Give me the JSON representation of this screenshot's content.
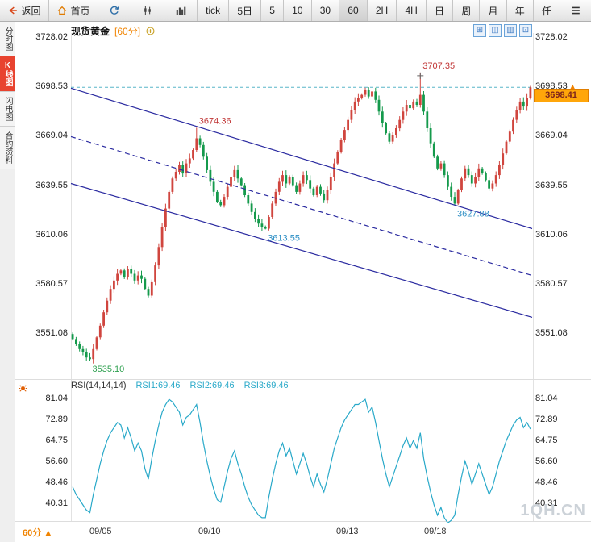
{
  "colors": {
    "up": "#d0453e",
    "down": "#159a4c",
    "trend": "#2a2aa0",
    "rsi_line": "#29a9c9",
    "accent": "#f08300"
  },
  "toolbar": {
    "back_label": "返回",
    "home_label": "首页",
    "buttons": [
      "tick",
      "5日",
      "5",
      "10",
      "30",
      "60",
      "2H",
      "4H",
      "日",
      "周",
      "月",
      "年",
      "任"
    ],
    "active": "60"
  },
  "sidebar": {
    "tabs": [
      {
        "label": "分时图",
        "active": false
      },
      {
        "label": "K线图",
        "active": true
      },
      {
        "label": "闪电图",
        "active": false
      },
      {
        "label": "合约资料",
        "active": false
      }
    ]
  },
  "chart": {
    "title": "现货黄金",
    "period_tag": "[60分]",
    "price_axis": [
      "3728.02",
      "3698.53",
      "3669.04",
      "3639.55",
      "3610.06",
      "3580.57",
      "3551.08"
    ],
    "axis_arrow_index": 1,
    "axis_arrow": "▲",
    "current_price": "3698.41",
    "top_tools": [
      {
        "name": "crosshair-tool-icon",
        "glyph": "⊞"
      },
      {
        "name": "measure-tool-icon",
        "glyph": "◫"
      },
      {
        "name": "draw-tool-icon",
        "glyph": "▥"
      },
      {
        "name": "zoom-tool-icon",
        "glyph": "⊡"
      }
    ]
  },
  "chart_data": {
    "type": "candlestick",
    "symbol": "现货黄金",
    "interval": "60分",
    "price_range": [
      3728.02,
      3551.08
    ],
    "closes": [
      3548,
      3545,
      3542,
      3540,
      3537,
      3536,
      3542,
      3549,
      3556,
      3564,
      3571,
      3578,
      3583,
      3587,
      3589,
      3585,
      3590,
      3587,
      3583,
      3586,
      3584,
      3578,
      3574,
      3582,
      3592,
      3603,
      3615,
      3626,
      3636,
      3644,
      3648,
      3652,
      3647,
      3653,
      3656,
      3661,
      3668,
      3664,
      3657,
      3649,
      3642,
      3636,
      3630,
      3628,
      3633,
      3639,
      3645,
      3649,
      3644,
      3640,
      3634,
      3629,
      3624,
      3620,
      3617,
      3615,
      3614,
      3621,
      3629,
      3636,
      3642,
      3646,
      3641,
      3645,
      3640,
      3636,
      3641,
      3646,
      3643,
      3638,
      3634,
      3639,
      3635,
      3631,
      3637,
      3645,
      3653,
      3660,
      3667,
      3673,
      3679,
      3685,
      3690,
      3692,
      3694,
      3697,
      3693,
      3696,
      3691,
      3684,
      3677,
      3671,
      3666,
      3670,
      3674,
      3679,
      3684,
      3688,
      3686,
      3690,
      3688,
      3694,
      3684,
      3674,
      3665,
      3657,
      3650,
      3653,
      3646,
      3639,
      3633,
      3629,
      3637,
      3644,
      3650,
      3646,
      3641,
      3645,
      3650,
      3647,
      3643,
      3638,
      3641,
      3646,
      3652,
      3659,
      3666,
      3672,
      3679,
      3685,
      3690,
      3687,
      3692,
      3698.41
    ],
    "markers": [
      {
        "index": 5,
        "type": "low",
        "price": 3535.1
      },
      {
        "index": 36,
        "type": "high",
        "price": 3674.36
      },
      {
        "index": 56,
        "type": "low",
        "price": 3613.55
      },
      {
        "index": 101,
        "type": "high",
        "price": 3707.35
      },
      {
        "index": 111,
        "type": "low",
        "price": 3627.88
      }
    ],
    "annotations": [
      {
        "index": 5,
        "price": 3535.1,
        "label": "3535.10",
        "color": "#2fa050",
        "pos": "below"
      },
      {
        "index": 36,
        "price": 3674.36,
        "label": "3674.36",
        "color": "#c03434",
        "pos": "above"
      },
      {
        "index": 56,
        "price": 3613.55,
        "label": "3613.55",
        "color": "#2d8fc5",
        "pos": "below"
      },
      {
        "index": 101,
        "price": 3707.35,
        "label": "3707.35",
        "color": "#c03434",
        "pos": "above",
        "cross": true
      },
      {
        "index": 111,
        "price": 3627.88,
        "label": "3627.88",
        "color": "#2d8fc5",
        "pos": "below"
      }
    ],
    "trendlines": [
      {
        "from": 3698,
        "to": 3614,
        "style": "solid"
      },
      {
        "from": 3669,
        "to": 3586,
        "style": "dashed"
      },
      {
        "from": 3641,
        "to": 3561,
        "style": "solid"
      }
    ],
    "hline": {
      "price": 3698.53,
      "style": "dashed",
      "color": "#58b6c8"
    },
    "rsi": {
      "range": [
        81.04,
        40.31
      ],
      "axis": [
        "81.04",
        "72.89",
        "64.75",
        "56.60",
        "48.46",
        "40.31"
      ],
      "values": [
        47,
        44,
        42,
        40,
        38,
        37,
        44,
        50,
        56,
        61,
        65,
        68,
        70,
        72,
        71,
        66,
        70,
        66,
        61,
        64,
        61,
        54,
        50,
        58,
        65,
        71,
        76,
        79,
        81,
        80,
        78,
        76,
        71,
        74,
        75,
        77,
        79,
        72,
        64,
        57,
        51,
        46,
        42,
        41,
        47,
        53,
        58,
        61,
        56,
        52,
        47,
        43,
        40,
        38,
        36,
        35,
        35,
        43,
        50,
        56,
        61,
        64,
        59,
        62,
        57,
        52,
        56,
        60,
        56,
        51,
        47,
        52,
        48,
        45,
        50,
        56,
        62,
        66,
        70,
        73,
        75,
        77,
        79,
        79,
        80,
        81,
        76,
        78,
        72,
        65,
        58,
        52,
        47,
        51,
        55,
        59,
        63,
        66,
        62,
        65,
        62,
        68,
        58,
        51,
        45,
        40,
        36,
        39,
        35,
        33,
        34,
        36,
        44,
        51,
        57,
        53,
        48,
        52,
        56,
        52,
        48,
        44,
        47,
        52,
        57,
        61,
        65,
        68,
        71,
        73,
        74,
        70,
        72,
        69.46
      ]
    }
  },
  "rsi_header": {
    "name": "RSI(14,14,14)",
    "values": [
      "RSI1:69.46",
      "RSI2:69.46",
      "RSI3:69.46"
    ]
  },
  "footer": {
    "period_label": "60分",
    "period_arrow": "▲",
    "dates": [
      {
        "label": "09/05",
        "x": 0.065
      },
      {
        "label": "09/10",
        "x": 0.3
      },
      {
        "label": "09/13",
        "x": 0.6
      },
      {
        "label": "09/18",
        "x": 0.79
      }
    ]
  },
  "watermark": "1QH.CN"
}
